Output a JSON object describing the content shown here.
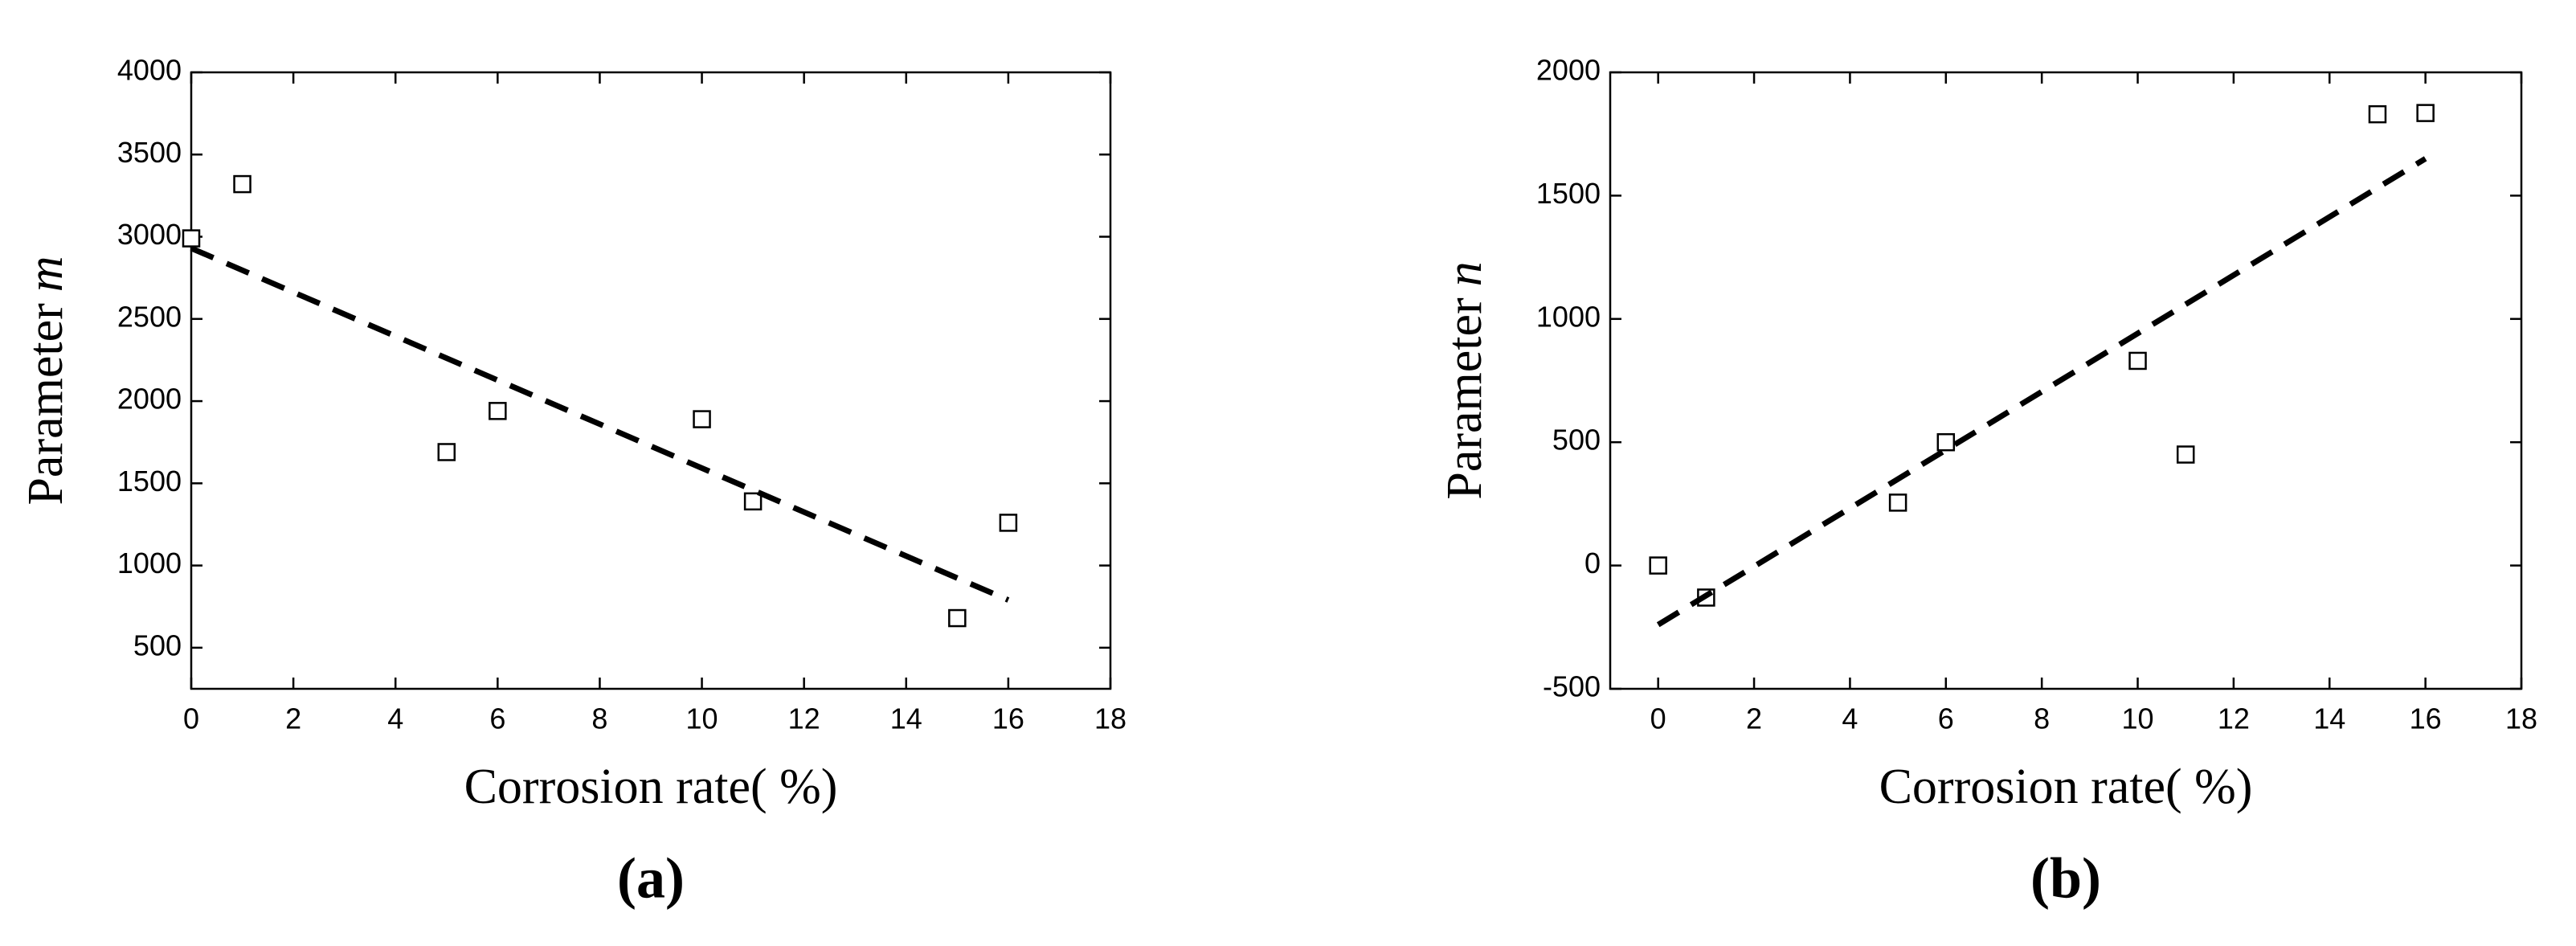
{
  "chart_data": [
    {
      "type": "scatter",
      "panel_label": "(a)",
      "xlabel": "Corrosion rate(  %)",
      "ylabel": "Parameter",
      "ylabel_var": "m",
      "xlim": [
        0,
        18
      ],
      "xticks": [
        0,
        2,
        4,
        6,
        8,
        10,
        12,
        14,
        16,
        18
      ],
      "ylim": [
        250,
        4000
      ],
      "yticks": [
        500,
        1000,
        1500,
        2000,
        2500,
        3000,
        3500,
        4000
      ],
      "series": [
        {
          "type": "scatter",
          "color": "#000000",
          "x": [
            0,
            1,
            5,
            6,
            10,
            11,
            15,
            16
          ],
          "values": [
            2990,
            3320,
            1690,
            1940,
            1890,
            1390,
            680,
            1260
          ]
        },
        {
          "type": "line",
          "style": "dashed",
          "color": "#000000",
          "x": [
            0,
            16
          ],
          "values": [
            2930,
            790
          ]
        }
      ]
    },
    {
      "type": "scatter",
      "panel_label": "(b)",
      "xlabel": "Corrosion rate(  %)",
      "ylabel": "Parameter",
      "ylabel_var": "n",
      "xlim": [
        -1,
        18
      ],
      "xticks": [
        0,
        2,
        4,
        6,
        8,
        10,
        12,
        14,
        16,
        18
      ],
      "ylim": [
        -500,
        2000
      ],
      "yticks": [
        -500,
        0,
        500,
        1000,
        1500,
        2000
      ],
      "series": [
        {
          "type": "scatter",
          "color": "#000000",
          "x": [
            0,
            1,
            5,
            6,
            10,
            11,
            15,
            16
          ],
          "values": [
            0,
            -130,
            255,
            500,
            830,
            450,
            1830,
            1835
          ]
        },
        {
          "type": "line",
          "style": "dashed",
          "color": "#000000",
          "x": [
            0,
            16
          ],
          "values": [
            -240,
            1650
          ]
        }
      ]
    }
  ]
}
